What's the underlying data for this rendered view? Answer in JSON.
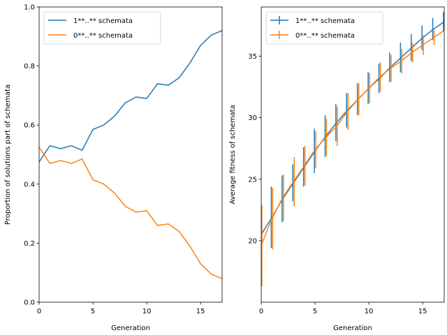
{
  "chart_data": [
    {
      "type": "line",
      "xlabel": "Generation",
      "ylabel": "Proportion of solutions part of schemata",
      "xlim": [
        0,
        17
      ],
      "ylim": [
        0,
        1
      ],
      "xticks": [
        0,
        5,
        10,
        15
      ],
      "yticks": [
        0.0,
        0.2,
        0.4,
        0.6,
        0.8,
        1.0
      ],
      "ytick_labels": [
        "0.0",
        "0.2",
        "0.4",
        "0.6",
        "0.8",
        "1.0"
      ],
      "legend_position": "upper-left",
      "x": [
        0,
        1,
        2,
        3,
        4,
        5,
        6,
        7,
        8,
        9,
        10,
        11,
        12,
        13,
        14,
        15,
        16,
        17
      ],
      "series": [
        {
          "name": "1**..** schemata",
          "color": "#1f77b4",
          "values": [
            0.475,
            0.53,
            0.52,
            0.53,
            0.515,
            0.585,
            0.6,
            0.63,
            0.675,
            0.695,
            0.69,
            0.74,
            0.735,
            0.76,
            0.81,
            0.87,
            0.905,
            0.92
          ]
        },
        {
          "name": "0**..** schemata",
          "color": "#ff7f0e",
          "values": [
            0.525,
            0.47,
            0.48,
            0.47,
            0.485,
            0.415,
            0.4,
            0.37,
            0.325,
            0.305,
            0.31,
            0.26,
            0.265,
            0.24,
            0.19,
            0.13,
            0.095,
            0.08
          ]
        }
      ]
    },
    {
      "type": "line",
      "xlabel": "Generation",
      "ylabel": "Average fitness of schemata",
      "xlim": [
        0,
        17
      ],
      "ylim": [
        15,
        39
      ],
      "xticks": [
        0,
        5,
        10,
        15
      ],
      "yticks": [
        20,
        25,
        30,
        35
      ],
      "ytick_labels": [
        "20",
        "25",
        "30",
        "35"
      ],
      "legend_position": "upper-left",
      "error_bars": true,
      "x": [
        0,
        1,
        2,
        3,
        4,
        5,
        6,
        7,
        8,
        9,
        10,
        11,
        12,
        13,
        14,
        15,
        16,
        17
      ],
      "series": [
        {
          "name": "1**..** schemata",
          "color": "#1f77b4",
          "values": [
            20.5,
            21.9,
            23.4,
            24.7,
            26.0,
            27.3,
            28.5,
            29.6,
            30.6,
            31.5,
            32.4,
            33.2,
            34.1,
            34.9,
            35.7,
            36.5,
            37.2,
            37.8
          ],
          "errors": [
            1.9,
            2.5,
            1.9,
            1.5,
            1.6,
            1.8,
            1.7,
            1.5,
            1.4,
            1.3,
            1.3,
            1.2,
            1.2,
            1.2,
            1.1,
            1.0,
            0.9,
            0.8
          ]
        },
        {
          "name": "0**..** schemata",
          "color": "#ff7f0e",
          "values": [
            19.6,
            21.8,
            23.5,
            24.8,
            26.1,
            27.4,
            28.4,
            29.3,
            30.5,
            31.5,
            32.4,
            33.3,
            34.0,
            34.6,
            35.3,
            35.9,
            36.5,
            37.1
          ],
          "errors": [
            3.3,
            2.5,
            1.9,
            2.0,
            1.6,
            1.5,
            1.5,
            1.6,
            1.5,
            1.3,
            1.2,
            1.2,
            1.1,
            1.0,
            0.8,
            0.8,
            0.6,
            0.4
          ]
        }
      ]
    }
  ]
}
